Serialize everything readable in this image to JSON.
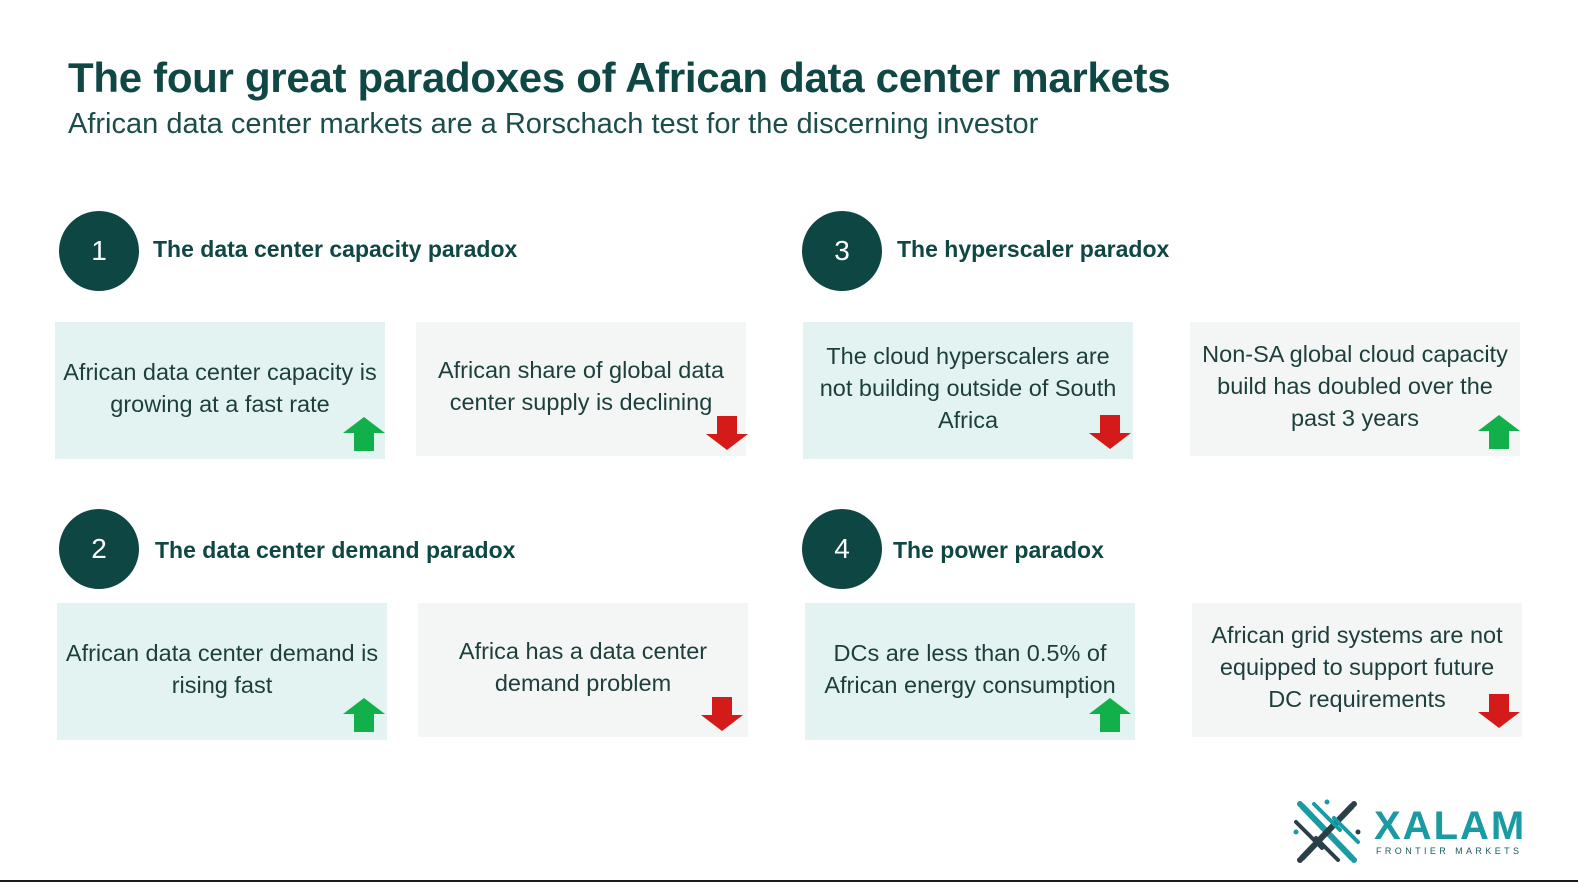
{
  "header": {
    "title": "The four great paradoxes of African data center markets",
    "subtitle": "African data center markets are a Rorschach test for the discerning investor"
  },
  "paradoxes": [
    {
      "number": "1",
      "title": "The data center capacity paradox",
      "cards": [
        {
          "text": "African data center capacity is growing at a fast rate",
          "trend": "up"
        },
        {
          "text": "African share of global data center supply is declining",
          "trend": "down"
        }
      ]
    },
    {
      "number": "2",
      "title": "The data center demand paradox",
      "cards": [
        {
          "text": "African data center demand is rising fast",
          "trend": "up"
        },
        {
          "text": "Africa has a data center demand problem",
          "trend": "down"
        }
      ]
    },
    {
      "number": "3",
      "title": "The hyperscaler paradox",
      "cards": [
        {
          "text": "The cloud hyperscalers are not building outside of South Africa",
          "trend": "down"
        },
        {
          "text": "Non-SA global cloud capacity build has doubled over the past 3 years",
          "trend": "up"
        }
      ]
    },
    {
      "number": "4",
      "title": "The power paradox",
      "cards": [
        {
          "text": "DCs are less than 0.5% of African energy consumption",
          "trend": "up"
        },
        {
          "text": "African grid systems are not equipped to support future DC requirements",
          "trend": "down"
        }
      ]
    }
  ],
  "logo": {
    "name": "XALAM",
    "tagline": "FRONTIER MARKETS"
  },
  "colors": {
    "dark_teal": "#0e4644",
    "card_teal": "#e3f3f1",
    "card_grey": "#f4f5f5",
    "arrow_up": "#12b04a",
    "arrow_down": "#d51a1a",
    "logo_teal": "#1a9aa3"
  },
  "icons": {
    "up": "arrow-up-icon",
    "down": "arrow-down-icon"
  }
}
